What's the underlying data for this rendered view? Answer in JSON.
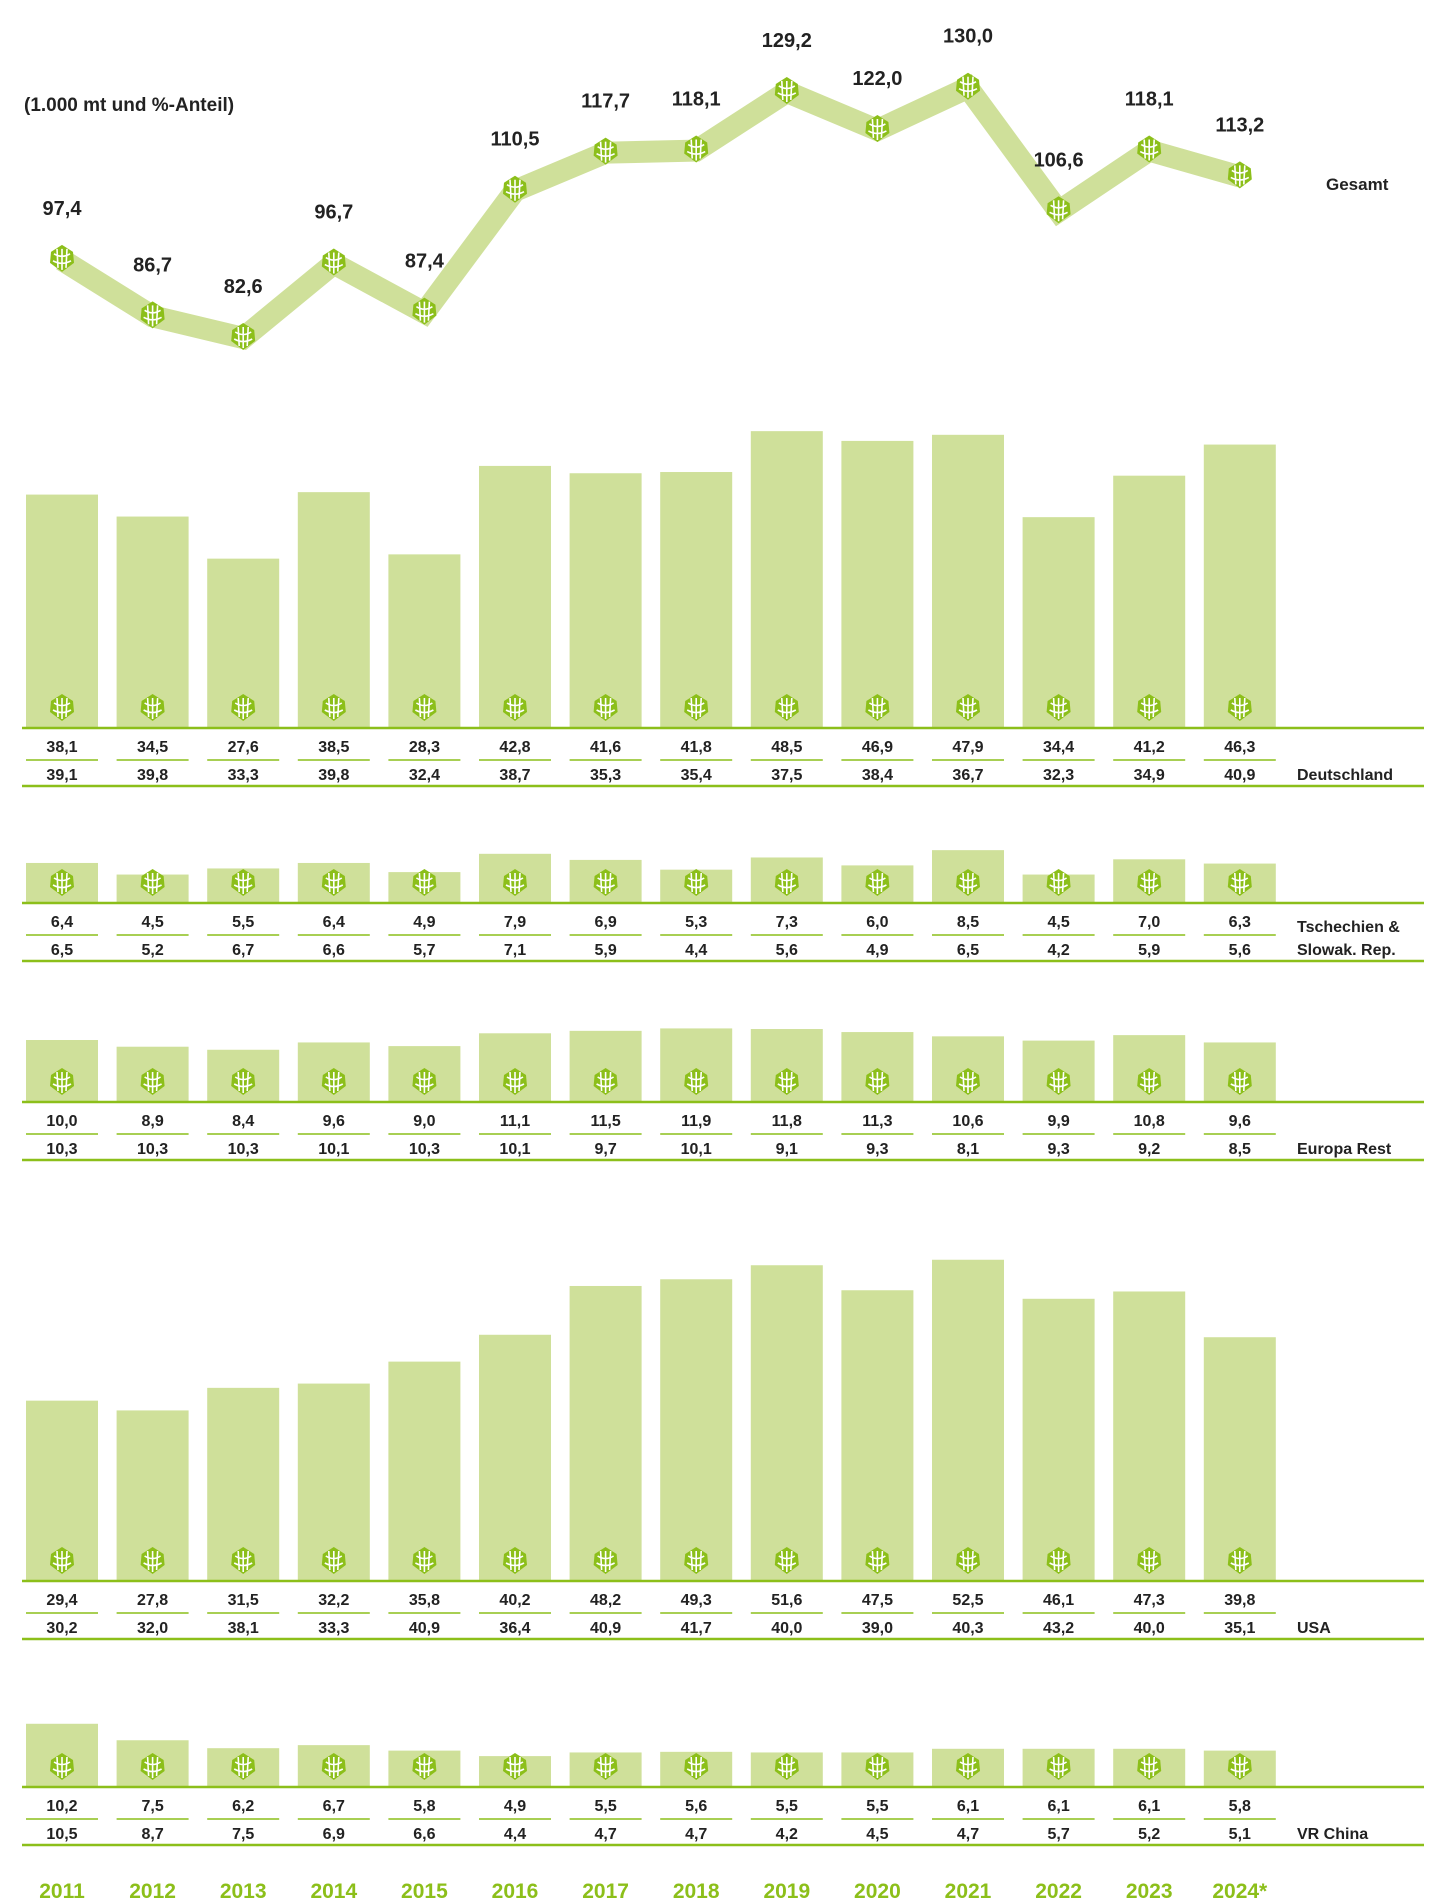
{
  "unit_note": "(1.000 mt und %-Anteil)",
  "colors": {
    "bar": "#cfe09a",
    "line": "#cfe09a",
    "accent": "#8cbf1a",
    "text": "#222222",
    "icon": "hop-cone-icon"
  },
  "years": [
    "2011",
    "2012",
    "2013",
    "2014",
    "2015",
    "2016",
    "2017",
    "2018",
    "2019",
    "2020",
    "2021",
    "2022",
    "2023",
    "2024*"
  ],
  "chart_data": [
    {
      "type": "line",
      "series": [
        {
          "name": "Gesamt",
          "values": [
            97.4,
            86.7,
            82.6,
            96.7,
            87.4,
            110.5,
            117.7,
            118.1,
            129.2,
            122.0,
            130.0,
            106.6,
            118.1,
            113.2
          ],
          "labels": [
            "97,4",
            "86,7",
            "82,6",
            "96,7",
            "87,4",
            "110,5",
            "117,7",
            "118,1",
            "129,2",
            "122,0",
            "130,0",
            "106,6",
            "118,1",
            "113,2"
          ]
        }
      ]
    },
    {
      "type": "bar",
      "series": [
        {
          "name": "Deutschland",
          "values": [
            38.1,
            34.5,
            27.6,
            38.5,
            28.3,
            42.8,
            41.6,
            41.8,
            48.5,
            46.9,
            47.9,
            34.4,
            41.2,
            46.3
          ],
          "labels": [
            "38,1",
            "34,5",
            "27,6",
            "38,5",
            "28,3",
            "42,8",
            "41,6",
            "41,8",
            "48,5",
            "46,9",
            "47,9",
            "34,4",
            "41,2",
            "46,3"
          ],
          "shares": [
            "39,1",
            "39,8",
            "33,3",
            "39,8",
            "32,4",
            "38,7",
            "35,3",
            "35,4",
            "37,5",
            "38,4",
            "36,7",
            "32,3",
            "34,9",
            "40,9"
          ]
        },
        {
          "name": "Tschechien & Slowak. Rep.",
          "name_lines": [
            "Tschechien &",
            "Slowak. Rep."
          ],
          "values": [
            6.4,
            4.5,
            5.5,
            6.4,
            4.9,
            7.9,
            6.9,
            5.3,
            7.3,
            6.0,
            8.5,
            4.5,
            7.0,
            6.3
          ],
          "labels": [
            "6,4",
            "4,5",
            "5,5",
            "6,4",
            "4,9",
            "7,9",
            "6,9",
            "5,3",
            "7,3",
            "6,0",
            "8,5",
            "4,5",
            "7,0",
            "6,3"
          ],
          "shares": [
            "6,5",
            "5,2",
            "6,7",
            "6,6",
            "5,7",
            "7,1",
            "5,9",
            "4,4",
            "5,6",
            "4,9",
            "6,5",
            "4,2",
            "5,9",
            "5,6"
          ]
        },
        {
          "name": "Europa Rest",
          "values": [
            10.0,
            8.9,
            8.4,
            9.6,
            9.0,
            11.1,
            11.5,
            11.9,
            11.8,
            11.3,
            10.6,
            9.9,
            10.8,
            9.6
          ],
          "labels": [
            "10,0",
            "8,9",
            "8,4",
            "9,6",
            "9,0",
            "11,1",
            "11,5",
            "11,9",
            "11,8",
            "11,3",
            "10,6",
            "9,9",
            "10,8",
            "9,6"
          ],
          "shares": [
            "10,3",
            "10,3",
            "10,3",
            "10,1",
            "10,3",
            "10,1",
            "9,7",
            "10,1",
            "9,1",
            "9,3",
            "8,1",
            "9,3",
            "9,2",
            "8,5"
          ]
        },
        {
          "name": "USA",
          "values": [
            29.4,
            27.8,
            31.5,
            32.2,
            35.8,
            40.2,
            48.2,
            49.3,
            51.6,
            47.5,
            52.5,
            46.1,
            47.3,
            39.8
          ],
          "labels": [
            "29,4",
            "27,8",
            "31,5",
            "32,2",
            "35,8",
            "40,2",
            "48,2",
            "49,3",
            "51,6",
            "47,5",
            "52,5",
            "46,1",
            "47,3",
            "39,8"
          ],
          "shares": [
            "30,2",
            "32,0",
            "38,1",
            "33,3",
            "40,9",
            "36,4",
            "40,9",
            "41,7",
            "40,0",
            "39,0",
            "40,3",
            "43,2",
            "40,0",
            "35,1"
          ]
        },
        {
          "name": "VR China",
          "values": [
            10.2,
            7.5,
            6.2,
            6.7,
            5.8,
            4.9,
            5.5,
            5.6,
            5.5,
            5.5,
            6.1,
            6.1,
            6.1,
            5.8
          ],
          "labels": [
            "10,2",
            "7,5",
            "6,2",
            "6,7",
            "5,8",
            "4,9",
            "5,5",
            "5,6",
            "5,5",
            "5,5",
            "6,1",
            "6,1",
            "6,1",
            "5,8"
          ],
          "shares": [
            "10,5",
            "8,7",
            "7,5",
            "6,9",
            "6,6",
            "4,4",
            "4,7",
            "4,7",
            "4,2",
            "4,5",
            "4,7",
            "5,7",
            "5,2",
            "5,1"
          ]
        }
      ]
    }
  ]
}
